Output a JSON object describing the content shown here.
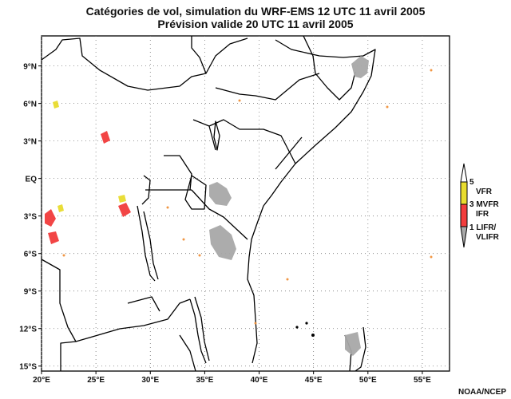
{
  "header": {
    "title": "Catégories de vol, simulation du WRF-EMS 12 UTC 11 avril 2005",
    "subtitle": "Prévision valide 20 UTC 11 avril 2005"
  },
  "map": {
    "lon_range": [
      20,
      57.5
    ],
    "lat_range": [
      -15.4,
      11.4
    ],
    "lat_ticks": [
      {
        "value": 9,
        "label": "9°N"
      },
      {
        "value": 6,
        "label": "6°N"
      },
      {
        "value": 3,
        "label": "3°N"
      },
      {
        "value": 0,
        "label": "EQ"
      },
      {
        "value": -3,
        "label": "3°S"
      },
      {
        "value": -6,
        "label": "6°S"
      },
      {
        "value": -9,
        "label": "9°S"
      },
      {
        "value": -12,
        "label": "12°S"
      },
      {
        "value": -15,
        "label": "15°S"
      }
    ],
    "lon_ticks": [
      {
        "value": 20,
        "label": "20°E"
      },
      {
        "value": 25,
        "label": "25°E"
      },
      {
        "value": 30,
        "label": "30°E"
      },
      {
        "value": 35,
        "label": "35°E"
      },
      {
        "value": 40,
        "label": "40°E"
      },
      {
        "value": 45,
        "label": "45°E"
      },
      {
        "value": 50,
        "label": "50°E"
      },
      {
        "value": 55,
        "label": "55°E"
      }
    ],
    "grid": "dotted"
  },
  "legend": {
    "colors": {
      "vfr": "#e8dc2e",
      "mvfr": "#f23c3c",
      "lifr": "#a8a8a8"
    },
    "labels": [
      "5",
      "VFR",
      "3 MVFR",
      "IFR",
      "1 LIFR/",
      "VLIFR"
    ]
  },
  "credit": "NOAA/NCEP"
}
